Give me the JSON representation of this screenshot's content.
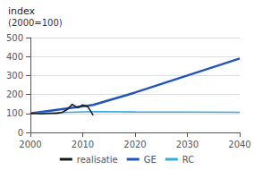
{
  "chart_data": {
    "type": "line",
    "title": "index",
    "subtitle": "(2000=100)",
    "series": [
      {
        "name": "realisatie",
        "color": "#1a1a1a",
        "x": [
          2000,
          2001,
          2002,
          2003,
          2004,
          2005,
          2006,
          2007,
          2008,
          2009,
          2010,
          2011,
          2012
        ],
        "values": [
          100,
          100,
          98,
          99,
          100,
          101,
          105,
          120,
          148,
          130,
          145,
          135,
          90
        ]
      },
      {
        "name": "GE",
        "color": "#2255bb",
        "x": [
          2000,
          2012,
          2020,
          2030,
          2040
        ],
        "values": [
          100,
          145,
          210,
          300,
          390
        ]
      },
      {
        "name": "RC",
        "color": "#33aadd",
        "x": [
          2000,
          2012,
          2020,
          2030,
          2040
        ],
        "values": [
          100,
          110,
          108,
          107,
          106
        ]
      }
    ],
    "xlim": [
      2000,
      2040
    ],
    "xticks": [
      2000,
      2010,
      2020,
      2030,
      2040
    ],
    "ylim": [
      0,
      500
    ],
    "yticks": [
      0,
      100,
      200,
      300,
      400,
      500
    ],
    "grid": true,
    "legend": "bottom"
  }
}
